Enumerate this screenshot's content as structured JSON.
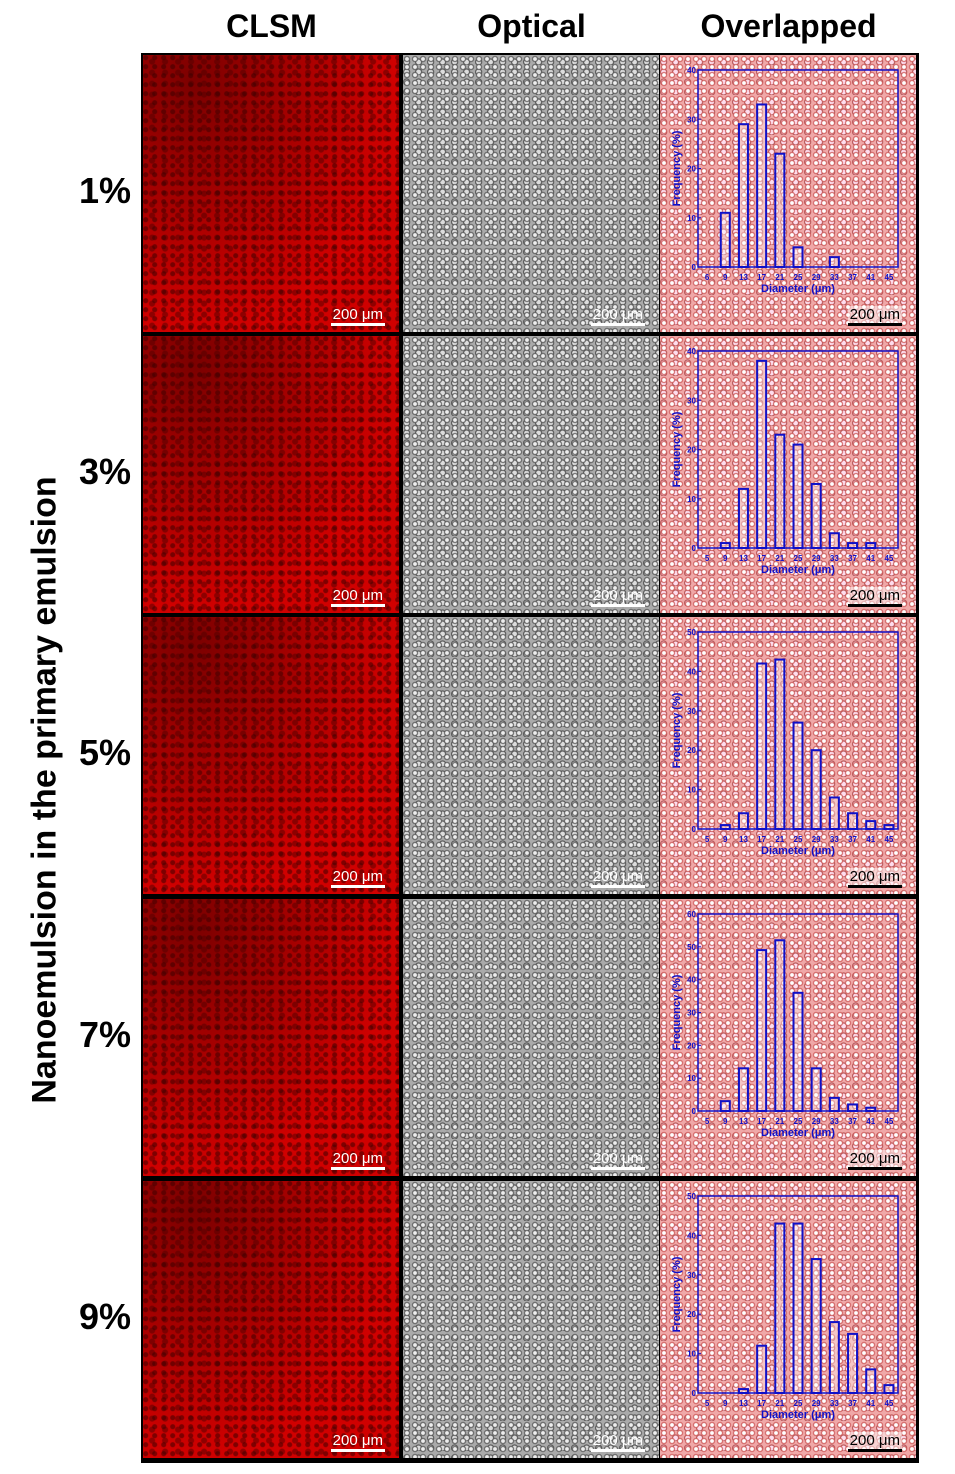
{
  "columns": [
    "CLSM",
    "Optical",
    "Overlapped"
  ],
  "rows": [
    "1%",
    "3%",
    "5%",
    "7%",
    "9%"
  ],
  "vertical_label": "Nanoemulsion in the primary emulsion",
  "scale_bar": "200 μm",
  "colors": {
    "histogram": "#1010c8",
    "clsm": "#d00000"
  },
  "chart_data": [
    {
      "type": "bar",
      "panel": "1%",
      "xlabel": "Diameter (μm)",
      "ylabel": "Frequency (%)",
      "ylim": [
        0,
        40
      ],
      "yticks": [
        0,
        10,
        20,
        30,
        40
      ],
      "xticks": [
        6,
        9,
        13,
        17,
        21,
        25,
        29,
        33,
        37,
        41,
        45
      ],
      "categories": [
        9,
        13,
        17,
        21,
        25,
        29,
        33,
        37,
        41,
        45
      ],
      "values": [
        11,
        29,
        33,
        23,
        4,
        0,
        2,
        0,
        0,
        0
      ]
    },
    {
      "type": "bar",
      "panel": "3%",
      "xlabel": "Diameter (μm)",
      "ylabel": "Frequency (%)",
      "ylim": [
        0,
        40
      ],
      "yticks": [
        0,
        10,
        20,
        30,
        40
      ],
      "xticks": [
        5,
        9,
        13,
        17,
        21,
        25,
        29,
        33,
        37,
        41,
        45
      ],
      "categories": [
        9,
        13,
        17,
        21,
        25,
        29,
        33,
        37,
        41,
        45
      ],
      "values": [
        1,
        12,
        38,
        23,
        21,
        13,
        3,
        1,
        1,
        0
      ]
    },
    {
      "type": "bar",
      "panel": "5%",
      "xlabel": "Diameter (μm)",
      "ylabel": "Frequency (%)",
      "ylim": [
        0,
        50
      ],
      "yticks": [
        0,
        10,
        20,
        30,
        40,
        50
      ],
      "xticks": [
        5,
        9,
        13,
        17,
        21,
        25,
        29,
        33,
        37,
        41,
        45
      ],
      "categories": [
        9,
        13,
        17,
        21,
        25,
        29,
        33,
        37,
        41,
        45
      ],
      "values": [
        1,
        4,
        42,
        43,
        27,
        20,
        8,
        4,
        2,
        1
      ]
    },
    {
      "type": "bar",
      "panel": "7%",
      "xlabel": "Diameter (μm)",
      "ylabel": "Frequency (%)",
      "ylim": [
        0,
        60
      ],
      "yticks": [
        0,
        10,
        20,
        30,
        40,
        50,
        60
      ],
      "xticks": [
        5,
        9,
        13,
        17,
        21,
        25,
        29,
        33,
        37,
        41,
        45
      ],
      "categories": [
        9,
        13,
        17,
        21,
        25,
        29,
        33,
        37,
        41,
        45
      ],
      "values": [
        3,
        13,
        49,
        52,
        36,
        13,
        4,
        2,
        1,
        0
      ]
    },
    {
      "type": "bar",
      "panel": "9%",
      "xlabel": "Diameter (μm)",
      "ylabel": "Frequency (%)",
      "ylim": [
        0,
        50
      ],
      "yticks": [
        0,
        10,
        20,
        30,
        40,
        50
      ],
      "xticks": [
        5,
        9,
        13,
        17,
        21,
        25,
        29,
        33,
        37,
        41,
        45
      ],
      "categories": [
        9,
        13,
        17,
        21,
        25,
        29,
        33,
        37,
        41,
        45
      ],
      "values": [
        0,
        1,
        12,
        43,
        43,
        34,
        18,
        15,
        6,
        2
      ]
    }
  ]
}
